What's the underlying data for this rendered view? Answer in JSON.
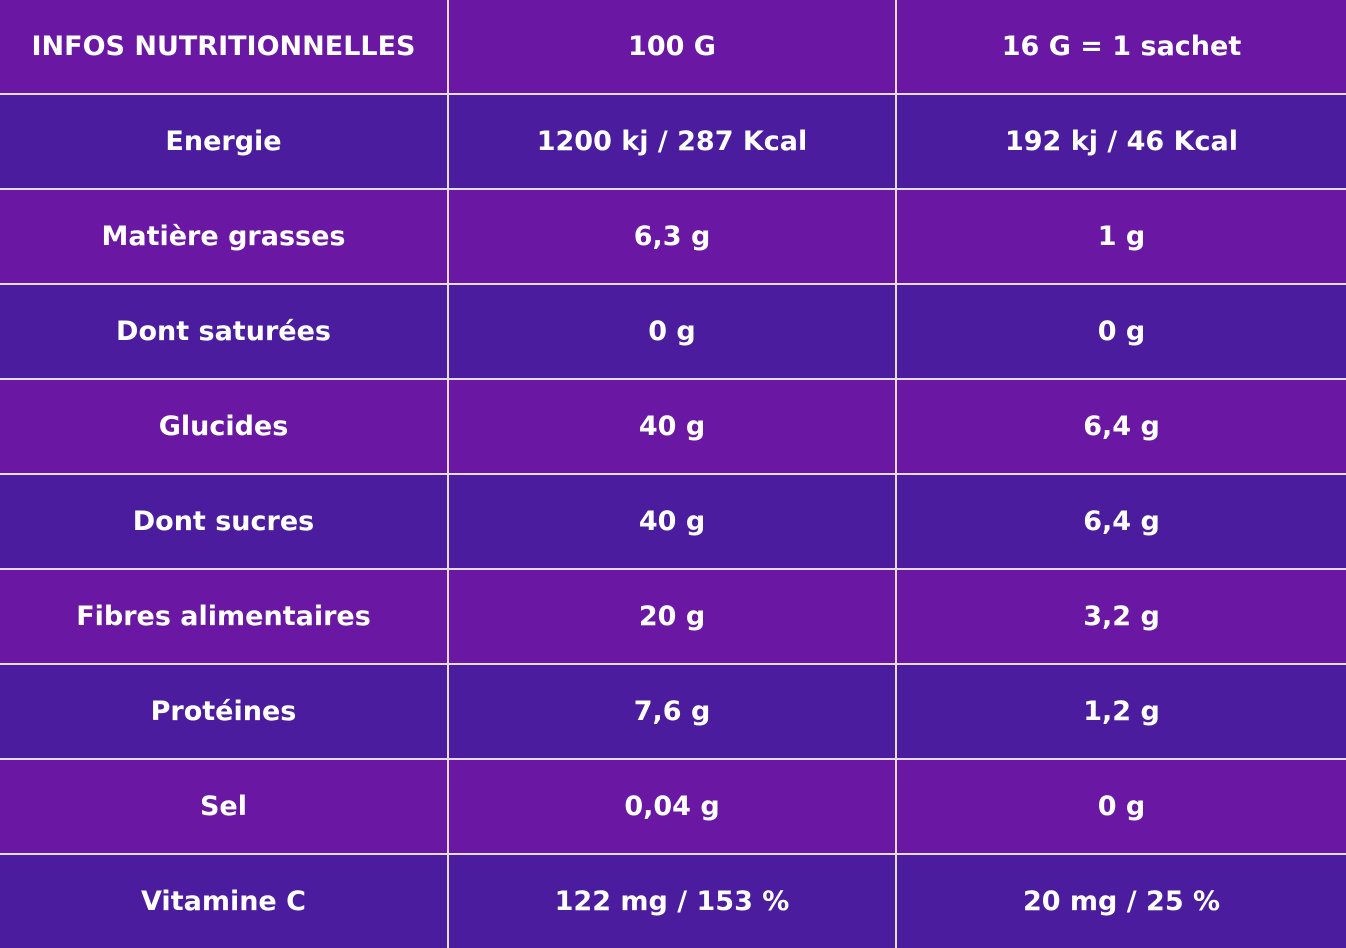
{
  "colors": {
    "row_primary": "#6a17a4",
    "row_secondary": "#4b1d9e",
    "grid": "#e6dcf2",
    "text": "#ffffff"
  },
  "header": [
    "INFOS NUTRITIONNELLES",
    "100 G",
    "16 G = 1 sachet"
  ],
  "rows": [
    [
      "Energie",
      "1200 kj / 287 Kcal",
      "192 kj / 46 Kcal"
    ],
    [
      "Matière grasses",
      "6,3 g",
      "1 g"
    ],
    [
      "Dont saturées",
      "0 g",
      "0 g"
    ],
    [
      "Glucides",
      "40 g",
      "6,4 g"
    ],
    [
      "Dont sucres",
      "40 g",
      "6,4 g"
    ],
    [
      "Fibres alimentaires",
      "20 g",
      "3,2 g"
    ],
    [
      "Protéines",
      "7,6 g",
      "1,2 g"
    ],
    [
      "Sel",
      "0,04 g",
      "0 g"
    ],
    [
      "Vitamine C",
      "122 mg / 153 %",
      "20 mg / 25 %"
    ]
  ]
}
